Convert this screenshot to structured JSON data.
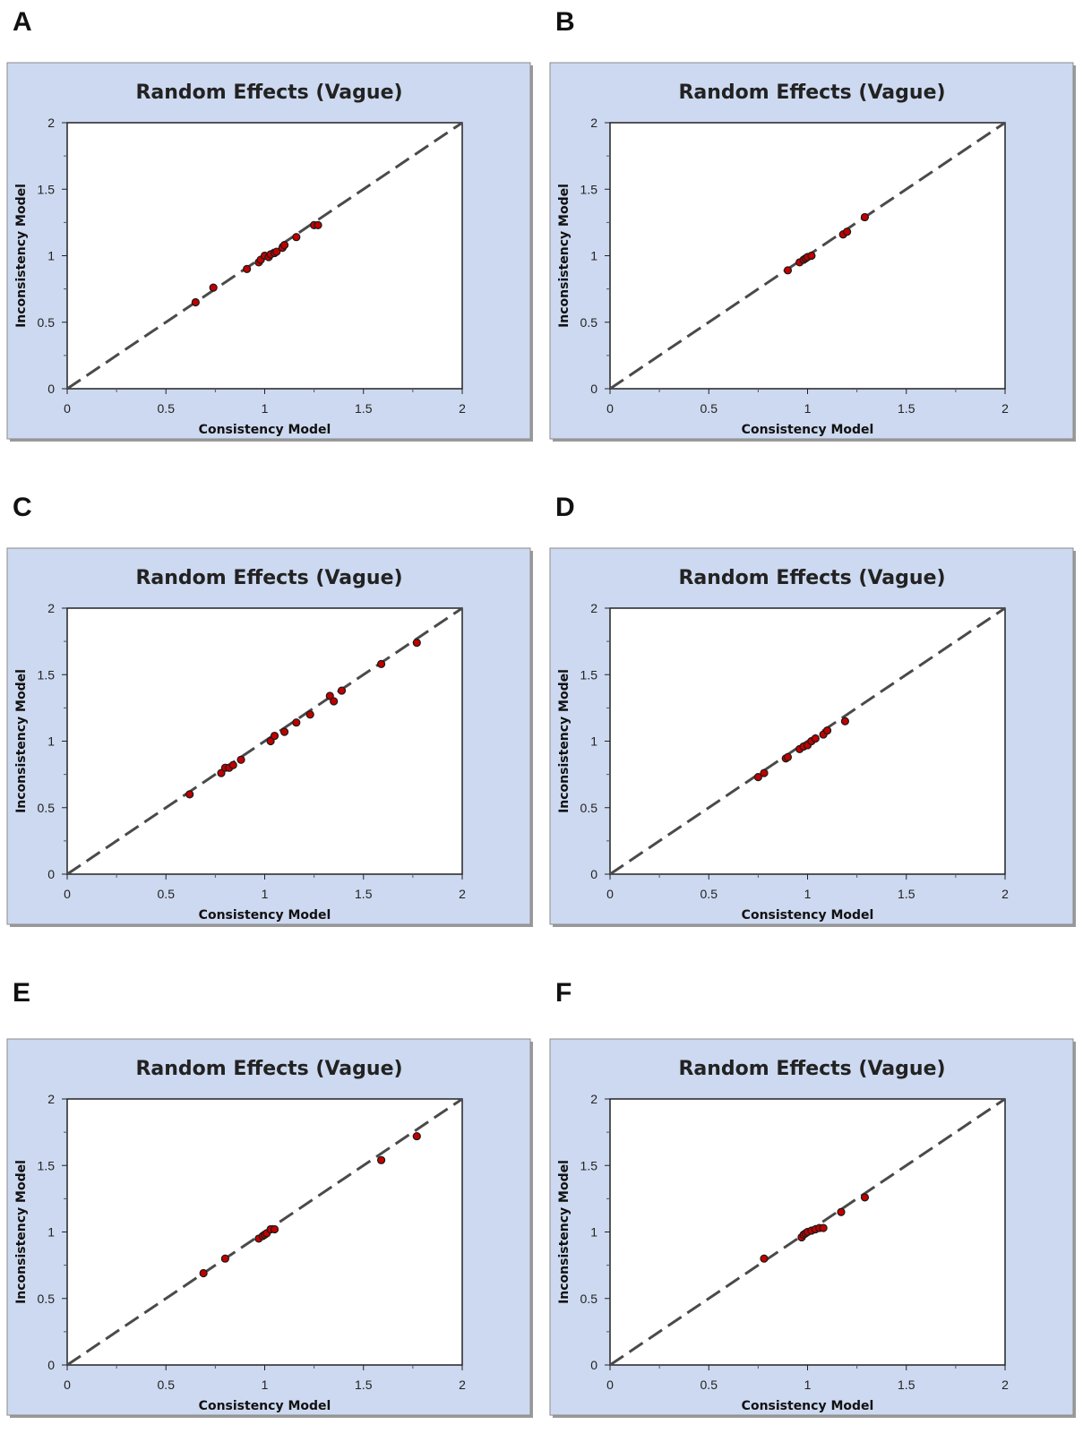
{
  "chart_data": [
    {
      "panel": "A",
      "type": "scatter",
      "title": "Random Effects (Vague)",
      "xlabel": "Consistency Model",
      "ylabel": "Inconsistency Model",
      "xlim": [
        0,
        2
      ],
      "ylim": [
        0,
        2
      ],
      "xticks": [
        "0",
        "0.5",
        "1",
        "1.5",
        "2"
      ],
      "yticks": [
        "0",
        "0.5",
        "1",
        "1.5",
        "2"
      ],
      "reference_line": "y = x (dashed)",
      "point_color": "#c00000",
      "background_color": "#cdd9f0",
      "x": [
        0.65,
        0.74,
        0.91,
        0.97,
        0.98,
        1.0,
        1.02,
        1.03,
        1.05,
        1.06,
        1.09,
        1.1,
        1.16,
        1.25,
        1.27
      ],
      "y": [
        0.65,
        0.76,
        0.9,
        0.95,
        0.97,
        1.0,
        0.99,
        1.01,
        1.02,
        1.03,
        1.06,
        1.08,
        1.14,
        1.23,
        1.23
      ]
    },
    {
      "panel": "B",
      "type": "scatter",
      "title": "Random Effects (Vague)",
      "xlabel": "Consistency Model",
      "ylabel": "Inconsistency Model",
      "xlim": [
        0,
        2
      ],
      "ylim": [
        0,
        2
      ],
      "xticks": [
        "0",
        "0.5",
        "1",
        "1.5",
        "2"
      ],
      "yticks": [
        "0",
        "0.5",
        "1",
        "1.5",
        "2"
      ],
      "reference_line": "y = x (dashed)",
      "point_color": "#c00000",
      "background_color": "#cdd9f0",
      "x": [
        0.9,
        0.96,
        0.98,
        0.99,
        1.0,
        1.02,
        1.18,
        1.2,
        1.29
      ],
      "y": [
        0.89,
        0.95,
        0.97,
        0.98,
        0.99,
        1.0,
        1.16,
        1.18,
        1.29
      ]
    },
    {
      "panel": "C",
      "type": "scatter",
      "title": "Random Effects (Vague)",
      "xlabel": "Consistency Model",
      "ylabel": "Inconsistency Model",
      "xlim": [
        0,
        2
      ],
      "ylim": [
        0,
        2
      ],
      "xticks": [
        "0",
        "0.5",
        "1",
        "1.5",
        "2"
      ],
      "yticks": [
        "0",
        "0.5",
        "1",
        "1.5",
        "2"
      ],
      "reference_line": "y = x (dashed)",
      "point_color": "#c00000",
      "background_color": "#cdd9f0",
      "x": [
        0.62,
        0.78,
        0.8,
        0.82,
        0.84,
        0.88,
        1.03,
        1.05,
        1.1,
        1.16,
        1.23,
        1.33,
        1.35,
        1.39,
        1.59,
        1.77
      ],
      "y": [
        0.6,
        0.76,
        0.8,
        0.8,
        0.82,
        0.86,
        1.0,
        1.04,
        1.07,
        1.14,
        1.2,
        1.34,
        1.3,
        1.38,
        1.58,
        1.74
      ]
    },
    {
      "panel": "D",
      "type": "scatter",
      "title": "Random Effects (Vague)",
      "xlabel": "Consistency Model",
      "ylabel": "Inconsistency Model",
      "xlim": [
        0,
        2
      ],
      "ylim": [
        0,
        2
      ],
      "xticks": [
        "0",
        "0.5",
        "1",
        "1.5",
        "2"
      ],
      "yticks": [
        "0",
        "0.5",
        "1",
        "1.5",
        "2"
      ],
      "reference_line": "y = x (dashed)",
      "point_color": "#c00000",
      "background_color": "#cdd9f0",
      "x": [
        0.75,
        0.78,
        0.89,
        0.9,
        0.96,
        0.98,
        1.0,
        1.02,
        1.04,
        1.08,
        1.1,
        1.19
      ],
      "y": [
        0.73,
        0.76,
        0.87,
        0.88,
        0.94,
        0.96,
        0.97,
        1.0,
        1.02,
        1.05,
        1.08,
        1.15
      ]
    },
    {
      "panel": "E",
      "type": "scatter",
      "title": "Random Effects (Vague)",
      "xlabel": "Consistency Model",
      "ylabel": "Inconsistency Model",
      "xlim": [
        0,
        2
      ],
      "ylim": [
        0,
        2
      ],
      "xticks": [
        "0",
        "0.5",
        "1",
        "1.5",
        "2"
      ],
      "yticks": [
        "0",
        "0.5",
        "1",
        "1.5",
        "2"
      ],
      "reference_line": "y = x (dashed)",
      "point_color": "#c00000",
      "background_color": "#cdd9f0",
      "x": [
        0.69,
        0.8,
        0.97,
        0.99,
        1.0,
        1.01,
        1.03,
        1.05,
        1.59,
        1.77
      ],
      "y": [
        0.69,
        0.8,
        0.95,
        0.97,
        0.98,
        0.99,
        1.02,
        1.02,
        1.54,
        1.72
      ]
    },
    {
      "panel": "F",
      "type": "scatter",
      "title": "Random Effects (Vague)",
      "xlabel": "Consistency Model",
      "ylabel": "Inconsistency Model",
      "xlim": [
        0,
        2
      ],
      "ylim": [
        0,
        2
      ],
      "xticks": [
        "0",
        "0.5",
        "1",
        "1.5",
        "2"
      ],
      "yticks": [
        "0",
        "0.5",
        "1",
        "1.5",
        "2"
      ],
      "reference_line": "y = x (dashed)",
      "point_color": "#c00000",
      "background_color": "#cdd9f0",
      "x": [
        0.78,
        0.97,
        0.98,
        0.99,
        1.0,
        1.02,
        1.04,
        1.06,
        1.08,
        1.17,
        1.29
      ],
      "y": [
        0.8,
        0.96,
        0.98,
        0.99,
        1.0,
        1.01,
        1.02,
        1.03,
        1.03,
        1.15,
        1.26
      ]
    }
  ]
}
